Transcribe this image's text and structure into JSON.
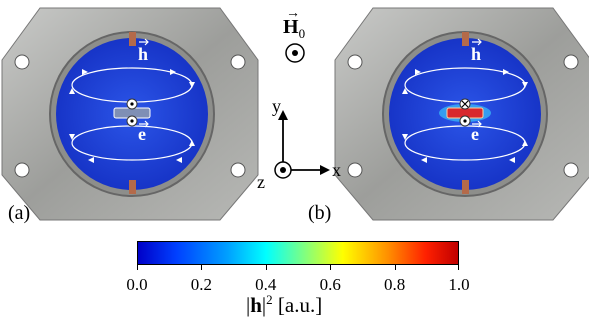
{
  "panels": [
    {
      "label": "(a)",
      "field_labels": {
        "h": "h",
        "e": "e"
      },
      "rod_color": "#7f8fb5",
      "center_symbols": [
        "dot",
        "dot"
      ]
    },
    {
      "label": "(b)",
      "field_labels": {
        "h": "h",
        "e": "e"
      },
      "rod_color": "#d8282e",
      "center_symbols": [
        "cross",
        "dot"
      ]
    }
  ],
  "bias_field": {
    "symbol": "H",
    "subscript": "0"
  },
  "axes": {
    "y": "y",
    "x": "x",
    "z": "z"
  },
  "colorbar": {
    "title_text": "h",
    "title_exponent": "2",
    "title_units": "[a.u.]",
    "ticks": [
      "0.0",
      "0.2",
      "0.4",
      "0.6",
      "0.8",
      "1.0"
    ],
    "tick_values": [
      0.0,
      0.2,
      0.4,
      0.6,
      0.8,
      1.0
    ],
    "range": [
      0.0,
      1.0
    ],
    "colormap": "jet"
  },
  "colors": {
    "cavity_blue": "#1e3fd6",
    "metal": "#a9aaa8",
    "rod_low": "#7f8fb5",
    "rod_high": "#d8282e"
  }
}
